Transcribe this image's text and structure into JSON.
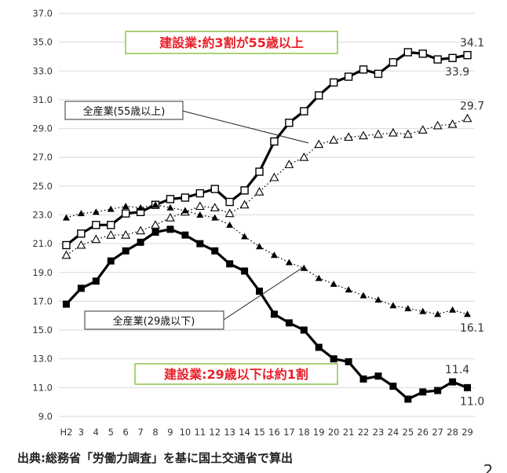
{
  "chart_data": {
    "type": "line",
    "categories": [
      "H2",
      "3",
      "4",
      "5",
      "6",
      "7",
      "8",
      "9",
      "10",
      "11",
      "12",
      "13",
      "14",
      "15",
      "16",
      "17",
      "18",
      "19",
      "20",
      "21",
      "22",
      "23",
      "24",
      "25",
      "26",
      "27",
      "28",
      "29"
    ],
    "ylim": [
      9.0,
      37.0
    ],
    "yticks": [
      "9.0",
      "11.0",
      "13.0",
      "15.0",
      "17.0",
      "19.0",
      "21.0",
      "23.0",
      "25.0",
      "27.0",
      "29.0",
      "31.0",
      "33.0",
      "35.0",
      "37.0"
    ],
    "grid": true,
    "series": [
      {
        "key": "construction_55",
        "style": "solid-thick",
        "marker": "open-square",
        "color": "#000000",
        "values": [
          20.9,
          21.7,
          22.3,
          22.3,
          23.1,
          23.2,
          23.7,
          24.1,
          24.2,
          24.5,
          24.8,
          23.9,
          24.7,
          26.0,
          28.1,
          29.4,
          30.2,
          31.3,
          32.2,
          32.6,
          33.1,
          32.8,
          33.6,
          34.3,
          34.2,
          33.8,
          33.9,
          34.1
        ]
      },
      {
        "key": "all_55",
        "style": "dotted",
        "marker": "open-triangle",
        "color": "#000000",
        "values": [
          20.2,
          20.9,
          21.3,
          21.6,
          21.6,
          21.9,
          22.3,
          22.8,
          23.2,
          23.6,
          23.5,
          23.1,
          23.7,
          24.6,
          25.6,
          26.5,
          27.0,
          27.9,
          28.2,
          28.4,
          28.5,
          28.6,
          28.7,
          28.6,
          28.9,
          29.2,
          29.3,
          29.7
        ]
      },
      {
        "key": "all_29",
        "style": "dotted",
        "marker": "filled-triangle",
        "color": "#000000",
        "values": [
          22.8,
          23.1,
          23.2,
          23.4,
          23.6,
          23.5,
          23.7,
          23.5,
          23.3,
          23.0,
          22.8,
          22.3,
          21.5,
          20.8,
          20.2,
          19.7,
          19.3,
          18.6,
          18.2,
          17.8,
          17.4,
          17.1,
          16.7,
          16.5,
          16.3,
          16.1,
          16.4,
          16.1
        ]
      },
      {
        "key": "construction_29",
        "style": "solid-thick",
        "marker": "filled-square",
        "color": "#000000",
        "values": [
          16.8,
          17.9,
          18.4,
          19.8,
          20.5,
          21.1,
          21.8,
          22.0,
          21.6,
          21.0,
          20.5,
          19.6,
          19.1,
          17.7,
          16.1,
          15.5,
          15.0,
          13.8,
          13.0,
          12.8,
          11.6,
          11.8,
          11.1,
          10.2,
          10.7,
          10.8,
          11.4,
          11.0
        ]
      }
    ],
    "data_labels": [
      {
        "text": "34.1",
        "series": "construction_55",
        "index": 27,
        "pos": "above"
      },
      {
        "text": "33.9",
        "series": "construction_55",
        "index": 26,
        "pos": "below"
      },
      {
        "text": "29.7",
        "series": "all_55",
        "index": 27,
        "pos": "above"
      },
      {
        "text": "16.1",
        "series": "all_29",
        "index": 27,
        "pos": "below"
      },
      {
        "text": "11.4",
        "series": "construction_29",
        "index": 26,
        "pos": "above"
      },
      {
        "text": "11.0",
        "series": "construction_29",
        "index": 27,
        "pos": "below"
      }
    ],
    "annotations": {
      "construction_55_box": "建設業:約3割が55歳以上",
      "construction_29_box": "建設業:29歳以下は約1割",
      "all_55_callout": "全産業(55歳以上)",
      "all_29_callout": "全産業(29歳以下)",
      "accent_color": "#e8202a",
      "box_border_color": "#8dc34a"
    }
  },
  "footer": {
    "source": "出典:総務省「労働力調査」を基に国土交通省で算出",
    "page_number": "2"
  }
}
